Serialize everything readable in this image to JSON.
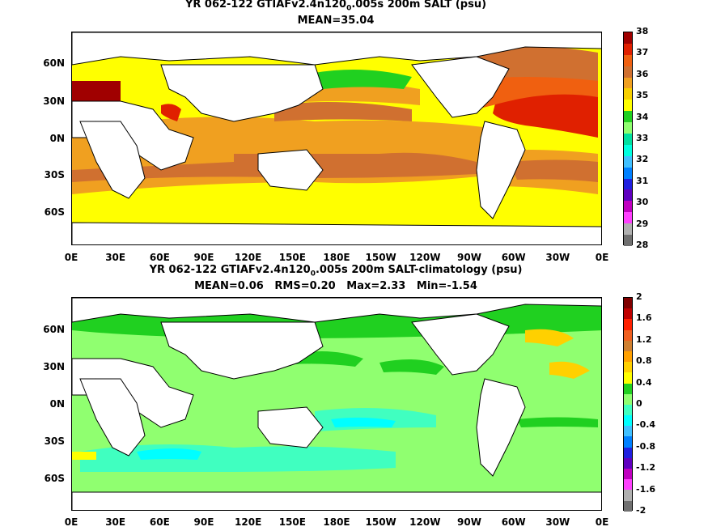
{
  "panels": [
    {
      "title_pre": "YR 062-122 GTIAFv2.4n120",
      "title_sub": "0",
      "title_post": ".005s 200m SALT (psu)",
      "stats": "MEAN=35.04",
      "colorbar_labels": [
        "38",
        "37",
        "36",
        "35",
        "34",
        "33",
        "32",
        "31",
        "30",
        "29",
        "28"
      ],
      "colorbar_colors": [
        "#a00000",
        "#e02000",
        "#f06010",
        "#d07030",
        "#f0a020",
        "#f8d000",
        "#ffff00",
        "#20d020",
        "#90ff70",
        "#00e0a0",
        "#00ffe0",
        "#40c0ff",
        "#0080ff",
        "#2020e0",
        "#6000c0",
        "#c000c0",
        "#ff40ff",
        "#b0b0b0",
        "#707070"
      ]
    },
    {
      "title_pre": "YR 062-122 GTIAFv2.4n120",
      "title_sub": "0",
      "title_post": ".005s 200m SALT-climatology (psu)",
      "stats": "MEAN=0.06   RMS=0.20   Max=2.33   Min=-1.54",
      "colorbar_labels": [
        "2",
        "1.6",
        "1.2",
        "0.8",
        "0.4",
        "0",
        "-0.4",
        "-0.8",
        "-1.2",
        "-1.6",
        "-2"
      ],
      "colorbar_colors": [
        "#800000",
        "#c00000",
        "#ff2000",
        "#f06020",
        "#d08030",
        "#ffa000",
        "#ffd000",
        "#ffff00",
        "#20d020",
        "#90ff70",
        "#40ffc0",
        "#00ffff",
        "#40c0ff",
        "#0080ff",
        "#2020e0",
        "#6000c0",
        "#c000c0",
        "#ff40ff",
        "#b0b0b0",
        "#707070"
      ]
    }
  ],
  "lat_labels": [
    "60N",
    "30N",
    "0N",
    "30S",
    "60S"
  ],
  "lon_labels": [
    "0E",
    "30E",
    "60E",
    "90E",
    "120E",
    "150E",
    "180E",
    "150W",
    "120W",
    "90W",
    "60W",
    "30W",
    "0E"
  ]
}
